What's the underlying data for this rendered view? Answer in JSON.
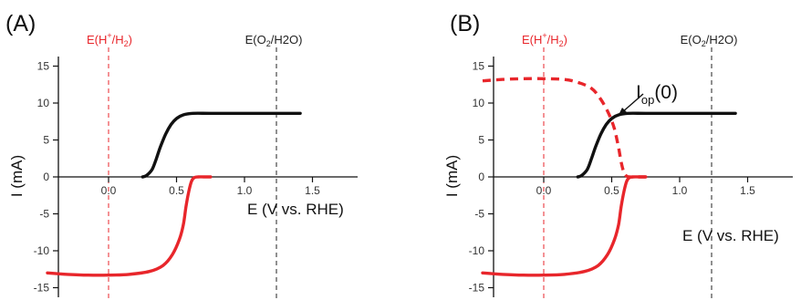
{
  "chart_data": [
    {
      "panel_label": "(A)",
      "type": "line",
      "xlabel": "E (V vs. RHE)",
      "ylabel": "I (mA)",
      "xlim": [
        -0.45,
        1.82
      ],
      "ylim": [
        -16.5,
        16.5
      ],
      "xticks": [
        0.0,
        0.5,
        1.0,
        1.5
      ],
      "xtick_labels": [
        "0.0",
        "0.5",
        "1.0",
        "1.5"
      ],
      "yticks": [
        15,
        10,
        5,
        0,
        -5,
        -10,
        -15
      ],
      "ytick_labels": [
        "15",
        "10",
        "5",
        "0",
        "-5",
        "-10",
        "-15"
      ],
      "ref_lines": [
        {
          "label_main": "E(H",
          "label_sup": "+",
          "label_mid": "/H",
          "label_sub": "2",
          "label_end": ")",
          "x": 0.0,
          "color": "#e8262b"
        },
        {
          "label_main": "E(O",
          "label_sup": "",
          "label_mid": "",
          "label_sub": "2",
          "label_end": "/H2O)",
          "x": 1.23,
          "color": "#222222"
        }
      ],
      "series": [
        {
          "color": "#111111",
          "dash": false,
          "x": [
            0.25,
            0.28,
            0.32,
            0.35,
            0.38,
            0.42,
            0.46,
            0.5,
            0.55,
            0.62,
            0.75,
            1.0,
            1.2,
            1.41
          ],
          "y": [
            0.0,
            0.2,
            1.0,
            2.4,
            4.0,
            5.8,
            7.1,
            7.9,
            8.4,
            8.6,
            8.6,
            8.6,
            8.6,
            8.6
          ]
        },
        {
          "color": "#e8262b",
          "dash": false,
          "x": [
            -0.45,
            -0.3,
            -0.15,
            0.0,
            0.15,
            0.3,
            0.4,
            0.47,
            0.52,
            0.55,
            0.57,
            0.59,
            0.61,
            0.63,
            0.66,
            0.7,
            0.75
          ],
          "y": [
            -13.0,
            -13.2,
            -13.3,
            -13.3,
            -13.2,
            -12.8,
            -12.0,
            -10.5,
            -8.5,
            -6.5,
            -4.0,
            -2.0,
            -0.6,
            -0.1,
            0.0,
            0.0,
            0.0
          ]
        }
      ]
    },
    {
      "panel_label": "(B)",
      "type": "line",
      "xlabel": "E (V vs. RHE)",
      "ylabel": "I (mA)",
      "annotation_main": "I",
      "annotation_sub": "op",
      "annotation_end": "(0)",
      "xlim": [
        -0.45,
        1.82
      ],
      "ylim": [
        -16.5,
        16.5
      ],
      "xticks": [
        0.0,
        0.5,
        1.0,
        1.5
      ],
      "xtick_labels": [
        "0.0",
        "0.5",
        "1.0",
        "1.5"
      ],
      "yticks": [
        15,
        10,
        5,
        0,
        -5,
        -10,
        -15
      ],
      "ytick_labels": [
        "15",
        "10",
        "5",
        "0",
        "-5",
        "-10",
        "-15"
      ],
      "ref_lines": [
        {
          "label_main": "E(H",
          "label_sup": "+",
          "label_mid": "/H",
          "label_sub": "2",
          "label_end": ")",
          "x": 0.0,
          "color": "#e8262b"
        },
        {
          "label_main": "E(O",
          "label_sup": "",
          "label_mid": "",
          "label_sub": "2",
          "label_end": "/H2O)",
          "x": 1.23,
          "color": "#222222"
        }
      ],
      "series": [
        {
          "color": "#111111",
          "dash": false,
          "x": [
            0.25,
            0.28,
            0.32,
            0.35,
            0.38,
            0.42,
            0.46,
            0.5,
            0.55,
            0.62,
            0.75,
            1.0,
            1.2,
            1.41
          ],
          "y": [
            0.0,
            0.2,
            1.0,
            2.4,
            4.0,
            5.8,
            7.1,
            7.9,
            8.4,
            8.6,
            8.6,
            8.6,
            8.6,
            8.6
          ]
        },
        {
          "color": "#e8262b",
          "dash": false,
          "x": [
            -0.45,
            -0.3,
            -0.15,
            0.0,
            0.15,
            0.3,
            0.4,
            0.47,
            0.52,
            0.55,
            0.57,
            0.59,
            0.61,
            0.63,
            0.66,
            0.7,
            0.75
          ],
          "y": [
            -13.0,
            -13.2,
            -13.3,
            -13.3,
            -13.2,
            -12.8,
            -12.0,
            -10.5,
            -8.5,
            -6.5,
            -4.0,
            -2.0,
            -0.6,
            -0.1,
            0.0,
            0.0,
            0.0
          ]
        },
        {
          "color": "#e8262b",
          "dash": true,
          "x": [
            -0.45,
            -0.3,
            -0.15,
            0.0,
            0.15,
            0.25,
            0.35,
            0.42,
            0.48,
            0.52,
            0.55,
            0.57,
            0.59,
            0.61,
            0.63,
            0.66,
            0.7,
            0.75
          ],
          "y": [
            13.0,
            13.2,
            13.3,
            13.3,
            13.2,
            12.8,
            12.0,
            10.5,
            8.5,
            6.5,
            4.0,
            2.0,
            0.6,
            0.1,
            0.0,
            0.0,
            0.0,
            0.0
          ]
        }
      ]
    }
  ]
}
